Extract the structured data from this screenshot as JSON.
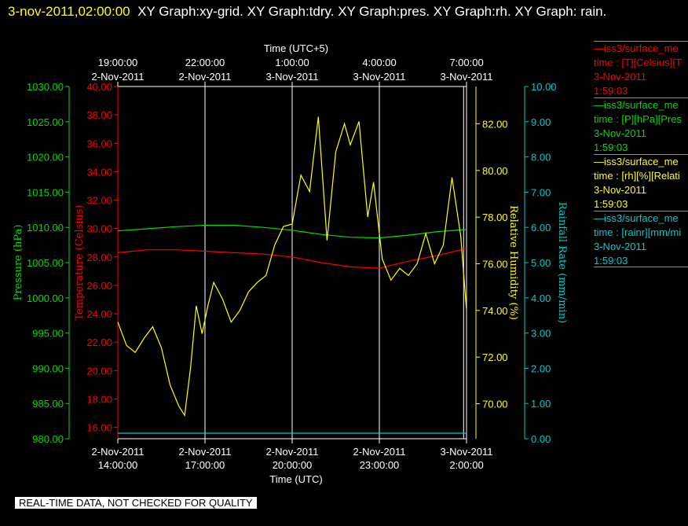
{
  "header": {
    "timestamp": "3-nov-2011,02:00:00",
    "title": "XY Graph:xy-grid.  XY Graph:tdry.  XY Graph:pres.  XY Graph:rh.  XY Graph: rain."
  },
  "disclaimer": "REAL-TIME DATA, NOT CHECKED FOR QUALITY",
  "colors": {
    "background": "#000000",
    "pressure": "#00dd00",
    "temperature": "#ff0000",
    "humidity": "#ffff00",
    "rain": "#00cccc",
    "grid": "#ffffff"
  },
  "legend": [
    {
      "line1": "—iss3/surface_me",
      "line2": "time : [T][Celsius][T",
      "line3": "3-Nov-2011",
      "line4": "1:59:03",
      "color": "#ff0000"
    },
    {
      "line1": "—iss3/surface_me",
      "line2": "time : [P][hPa][Pres",
      "line3": "3-Nov-2011",
      "line4": "1:59:03",
      "color": "#00dd00"
    },
    {
      "line1": "—iss3/surface_me",
      "line2": "time : [rh][%][Relati",
      "line3": "3-Nov-2011",
      "line4": "1:59:03",
      "color": "#ffff00"
    },
    {
      "line1": "—iss3/surface_me",
      "line2": "time : [rainr][mm/mi",
      "line3": "3-Nov-2011",
      "line4": "1:59:03",
      "color": "#00cccc"
    }
  ],
  "chart_data": {
    "type": "line",
    "xlabel": "Time (UTC)",
    "x2label": "Time (UTC+5)",
    "xlim": [
      "2011-11-02 14:00:00",
      "2011-11-03 02:00:00"
    ],
    "xticks_bottom": [
      {
        "date": "2-Nov-2011",
        "time": "14:00:00"
      },
      {
        "date": "2-Nov-2011",
        "time": "17:00:00"
      },
      {
        "date": "2-Nov-2011",
        "time": "20:00:00"
      },
      {
        "date": "2-Nov-2011",
        "time": "23:00:00"
      },
      {
        "date": "3-Nov-2011",
        "time": "2:00:00"
      }
    ],
    "xticks_top": [
      {
        "time": "19:00:00",
        "date": "2-Nov-2011"
      },
      {
        "time": "22:00:00",
        "date": "2-Nov-2011"
      },
      {
        "time": "1:00:00",
        "date": "3-Nov-2011"
      },
      {
        "time": "4:00:00",
        "date": "3-Nov-2011"
      },
      {
        "time": "7:00:00",
        "date": "3-Nov-2011"
      }
    ],
    "grid": true,
    "axes": {
      "pressure": {
        "label": "Pressure (hPa)",
        "ylim": [
          980,
          1030
        ],
        "ticks": [
          "980.00",
          "985.00",
          "990.00",
          "995.00",
          "1000.00",
          "1005.00",
          "1010.00",
          "1015.00",
          "1020.00",
          "1025.00",
          "1030.00"
        ]
      },
      "temperature": {
        "label": "Temperature (Celsius)",
        "ylim": [
          15.2,
          40
        ],
        "ticks": [
          "16.00",
          "18.00",
          "20.00",
          "22.00",
          "24.00",
          "26.00",
          "28.00",
          "30.00",
          "32.00",
          "34.00",
          "36.00",
          "38.00",
          "40.00"
        ]
      },
      "humidity": {
        "label": "Relative Humidity (%)",
        "ylim": [
          68.5,
          83.6
        ],
        "ticks": [
          "70.00",
          "72.00",
          "74.00",
          "76.00",
          "78.00",
          "80.00",
          "82.00"
        ]
      },
      "rain": {
        "label": "Rainfall Rate (mm/min)",
        "ylim": [
          0,
          10
        ],
        "ticks": [
          "0.00",
          "1.00",
          "2.00",
          "3.00",
          "4.00",
          "5.00",
          "6.00",
          "7.00",
          "8.00",
          "9.00",
          "10.00"
        ]
      }
    },
    "series": [
      {
        "axis": "pressure",
        "hours": [
          0,
          1,
          2,
          3,
          4,
          5,
          6,
          7,
          8,
          9,
          10,
          11,
          12
        ],
        "values": [
          1009.5,
          1009.8,
          1010.1,
          1010.3,
          1010.3,
          1010.0,
          1009.6,
          1009.0,
          1008.6,
          1008.5,
          1008.9,
          1009.4,
          1009.7
        ]
      },
      {
        "axis": "temperature",
        "hours": [
          0,
          1,
          2,
          3,
          4,
          5,
          6,
          7,
          8,
          9,
          10,
          11,
          12
        ],
        "values": [
          28.3,
          28.5,
          28.5,
          28.4,
          28.3,
          28.2,
          28.0,
          27.6,
          27.3,
          27.2,
          27.7,
          28.1,
          28.6
        ]
      },
      {
        "axis": "humidity",
        "hours": [
          0,
          0.3,
          0.6,
          0.9,
          1.2,
          1.5,
          1.8,
          2.1,
          2.3,
          2.5,
          2.7,
          2.9,
          3.1,
          3.3,
          3.6,
          3.9,
          4.2,
          4.5,
          4.8,
          5.1,
          5.4,
          5.7,
          6.0,
          6.3,
          6.6,
          6.9,
          7.2,
          7.5,
          7.8,
          8.0,
          8.3,
          8.6,
          8.8,
          9.1,
          9.4,
          9.7,
          10.0,
          10.3,
          10.6,
          10.9,
          11.2,
          11.5,
          11.8,
          12.0
        ],
        "values": [
          73.5,
          72.5,
          72.2,
          72.8,
          73.3,
          72.4,
          70.8,
          69.9,
          69.5,
          71.5,
          74.2,
          73.0,
          74.2,
          75.2,
          74.5,
          73.5,
          74.0,
          74.8,
          75.2,
          75.5,
          76.8,
          77.6,
          77.7,
          79.8,
          79.1,
          82.3,
          77.0,
          80.8,
          82.0,
          81.1,
          82.1,
          78.0,
          79.5,
          76.2,
          75.3,
          75.8,
          75.5,
          76.0,
          77.3,
          76.0,
          76.8,
          79.7,
          77.2,
          74.0
        ]
      },
      {
        "axis": "rain",
        "hours": [
          0,
          12
        ],
        "values": [
          0,
          0
        ]
      }
    ]
  }
}
